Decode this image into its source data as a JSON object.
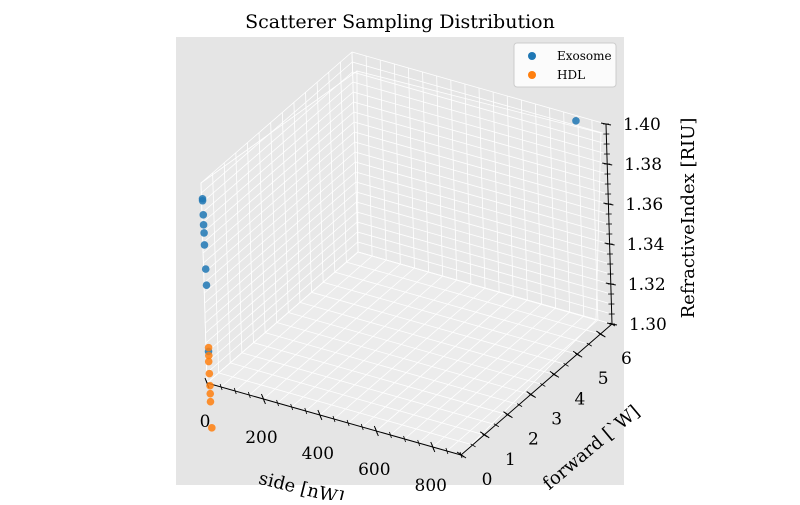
{
  "chart_data": {
    "type": "scatter",
    "projection": "3d",
    "title": "Scatterer Sampling Distribution",
    "xlabel": "side [nW]",
    "ylabel": "forward [`W]",
    "zlabel": "RefractiveIndex [RIU]",
    "xlim": [
      0,
      900
    ],
    "ylim": [
      0,
      6.5
    ],
    "zlim": [
      1.3,
      1.4
    ],
    "xticks": [
      "0",
      "200",
      "400",
      "600",
      "800"
    ],
    "yticks": [
      "0",
      "1",
      "2",
      "3",
      "4",
      "5",
      "6"
    ],
    "zticks": [
      "1.30",
      "1.32",
      "1.34",
      "1.36",
      "1.38",
      "1.40"
    ],
    "grid": true,
    "legend_position": "top-right",
    "series": [
      {
        "name": "Exosome",
        "color": "#1f77b4",
        "points": [
          {
            "x": 810,
            "y": 6.3,
            "z": 1.4
          },
          {
            "x": 2,
            "y": 0.02,
            "z": 1.392
          },
          {
            "x": 2,
            "y": 0.02,
            "z": 1.391
          },
          {
            "x": 3,
            "y": 0.02,
            "z": 1.384
          },
          {
            "x": 3,
            "y": 0.02,
            "z": 1.379
          },
          {
            "x": 4,
            "y": 0.02,
            "z": 1.375
          },
          {
            "x": 4,
            "y": 0.02,
            "z": 1.369
          },
          {
            "x": 6,
            "y": 0.02,
            "z": 1.357
          },
          {
            "x": 7,
            "y": 0.02,
            "z": 1.349
          },
          {
            "x": 8,
            "y": 0.01,
            "z": 1.316
          }
        ]
      },
      {
        "name": "HDL",
        "color": "#ff7f0e",
        "points": [
          {
            "x": 9,
            "y": 0.005,
            "z": 1.318
          },
          {
            "x": 9,
            "y": 0.005,
            "z": 1.314
          },
          {
            "x": 8,
            "y": 0.005,
            "z": 1.311
          },
          {
            "x": 9,
            "y": 0.005,
            "z": 1.305
          },
          {
            "x": 10,
            "y": 0.005,
            "z": 1.299
          },
          {
            "x": 10,
            "y": 0.005,
            "z": 1.295
          },
          {
            "x": 10,
            "y": 0.005,
            "z": 1.291
          },
          {
            "x": 12,
            "y": 0.005,
            "z": 1.278
          }
        ]
      }
    ]
  }
}
